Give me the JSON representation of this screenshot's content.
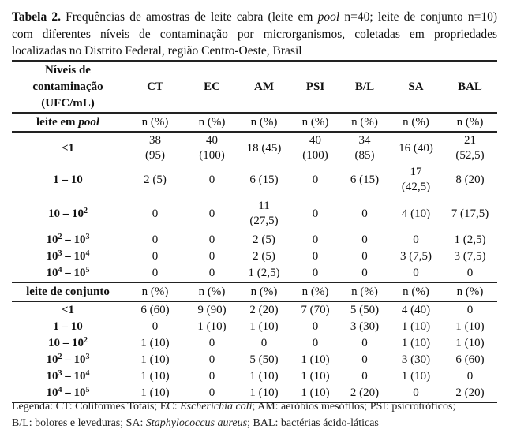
{
  "caption": {
    "label": "Tabela 2.",
    "line1_a": " Frequências de amostras de leite cabra (leite em ",
    "line1_pool": "pool",
    "line1_b": " n=40; leite de conjunto n=10)",
    "line2": "com diferentes níveis de contaminação por microrganismos, coletadas em propriedades",
    "line3": "localizadas no Distrito Federal, região Centro-Oeste, Brasil"
  },
  "table": {
    "header": {
      "label": "Níveis de\ncontaminação\n(UFC/mL)",
      "columns": [
        "CT",
        "EC",
        "AM",
        "PSI",
        "B/L",
        "SA",
        "BAL"
      ]
    },
    "sections": [
      {
        "label_a": "leite em ",
        "label_i": "pool",
        "units": [
          "n (%)",
          "n (%)",
          "n (%)",
          "n (%)",
          "n (%)",
          "n (%)",
          "n (%)"
        ],
        "rows": [
          {
            "base": "<1",
            "exp": "",
            "base2": "",
            "exp2": "",
            "values": [
              "38\n(95)",
              "40\n(100)",
              "18 (45)",
              "40\n(100)",
              "34\n(85)",
              "16 (40)",
              "21\n(52,5)"
            ]
          },
          {
            "base": "1 – 10",
            "exp": "",
            "base2": "",
            "exp2": "",
            "values": [
              "2 (5)",
              "0",
              "6 (15)",
              "0",
              "6 (15)",
              "17\n(42,5)",
              "8 (20)"
            ]
          },
          {
            "base": "10 – 10",
            "exp": "2",
            "base2": "",
            "exp2": "",
            "values": [
              "0",
              "0",
              "11\n(27,5)",
              "0",
              "0",
              "4 (10)",
              "7 (17,5)"
            ]
          },
          {
            "base": "10",
            "exp": "2",
            "base2": " – 10",
            "exp2": "3",
            "values": [
              "0",
              "0",
              "2 (5)",
              "0",
              "0",
              "0",
              "1 (2,5)"
            ]
          },
          {
            "base": "10",
            "exp": "3",
            "base2": " – 10",
            "exp2": "4",
            "values": [
              "0",
              "0",
              "2 (5)",
              "0",
              "0",
              "3 (7,5)",
              "3 (7,5)"
            ]
          },
          {
            "base": "10",
            "exp": "4",
            "base2": " – 10",
            "exp2": "5",
            "values": [
              "0",
              "0",
              "1 (2,5)",
              "0",
              "0",
              "0",
              "0"
            ]
          }
        ]
      },
      {
        "label_a": "leite de conjunto",
        "label_i": "",
        "units": [
          "n (%)",
          "n (%)",
          "n (%)",
          "n (%)",
          "n (%)",
          "n (%)",
          "n (%)"
        ],
        "rows": [
          {
            "base": "<1",
            "exp": "",
            "base2": "",
            "exp2": "",
            "values": [
              "6 (60)",
              "9 (90)",
              "2 (20)",
              "7 (70)",
              "5 (50)",
              "4 (40)",
              "0"
            ]
          },
          {
            "base": "1 – 10",
            "exp": "",
            "base2": "",
            "exp2": "",
            "values": [
              "0",
              "1 (10)",
              "1 (10)",
              "0",
              "3 (30)",
              "1 (10)",
              "1 (10)"
            ]
          },
          {
            "base": "10 – 10",
            "exp": "2",
            "base2": "",
            "exp2": "",
            "values": [
              "1 (10)",
              "0",
              "0",
              "0",
              "0",
              "1 (10)",
              "1 (10)"
            ]
          },
          {
            "base": "10",
            "exp": "2",
            "base2": " – 10",
            "exp2": "3",
            "values": [
              "1 (10)",
              "0",
              "5 (50)",
              "1 (10)",
              "0",
              "3 (30)",
              "6 (60)"
            ]
          },
          {
            "base": "10",
            "exp": "3",
            "base2": " – 10",
            "exp2": "4",
            "values": [
              "1 (10)",
              "0",
              "1 (10)",
              "1 (10)",
              "0",
              "1 (10)",
              "0"
            ]
          },
          {
            "base": "10",
            "exp": "4",
            "base2": " – 10",
            "exp2": "5",
            "values": [
              "1 (10)",
              "0",
              "1 (10)",
              "1 (10)",
              "2 (20)",
              "0",
              "2 (20)"
            ]
          }
        ]
      }
    ]
  },
  "legend": {
    "a": "Legenda: CT: Coliformes Totais; EC: ",
    "ec": "Escherichia coli",
    "b": "; AM: aeróbios mesófilos; PSI: psicrotróficos;",
    "c": "B/L: bolores e leveduras; SA: ",
    "sa": "Staphylococcus aureus",
    "d": "; BAL: bactérias ácido-láticas"
  }
}
